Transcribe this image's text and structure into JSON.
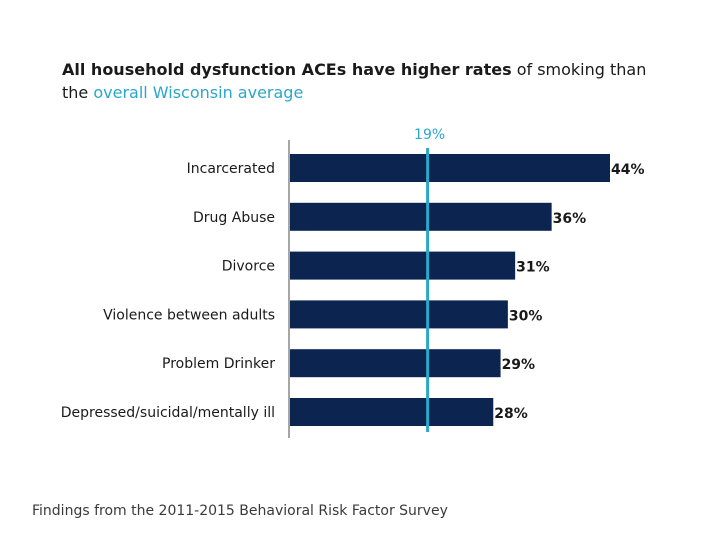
{
  "slide": {
    "title_part1": "All household dysfunction ACEs have higher rates",
    "title_part2": " of smoking than the ",
    "title_part3": "overall Wisconsin average",
    "footnote": "Findings from the 2011-2015 Behavioral Risk Factor Survey"
  },
  "colors": {
    "bar": "#0c2550",
    "reference_line": "#2aa7c9",
    "axis": "#a6a6a6",
    "text": "#1a1a1a"
  },
  "chart_data": {
    "type": "bar",
    "orientation": "horizontal",
    "categories": [
      "Incarcerated",
      "Drug Abuse",
      "Divorce",
      "Violence between adults",
      "Problem Drinker",
      "Depressed/suicidal/mentally ill"
    ],
    "values": [
      44,
      36,
      31,
      30,
      29,
      28
    ],
    "value_labels": [
      "44%",
      "36%",
      "31%",
      "30%",
      "29%",
      "28%"
    ],
    "reference_line": {
      "value": 19,
      "label": "19%"
    },
    "xlim": [
      0,
      48
    ],
    "grid": false,
    "legend": "none"
  }
}
